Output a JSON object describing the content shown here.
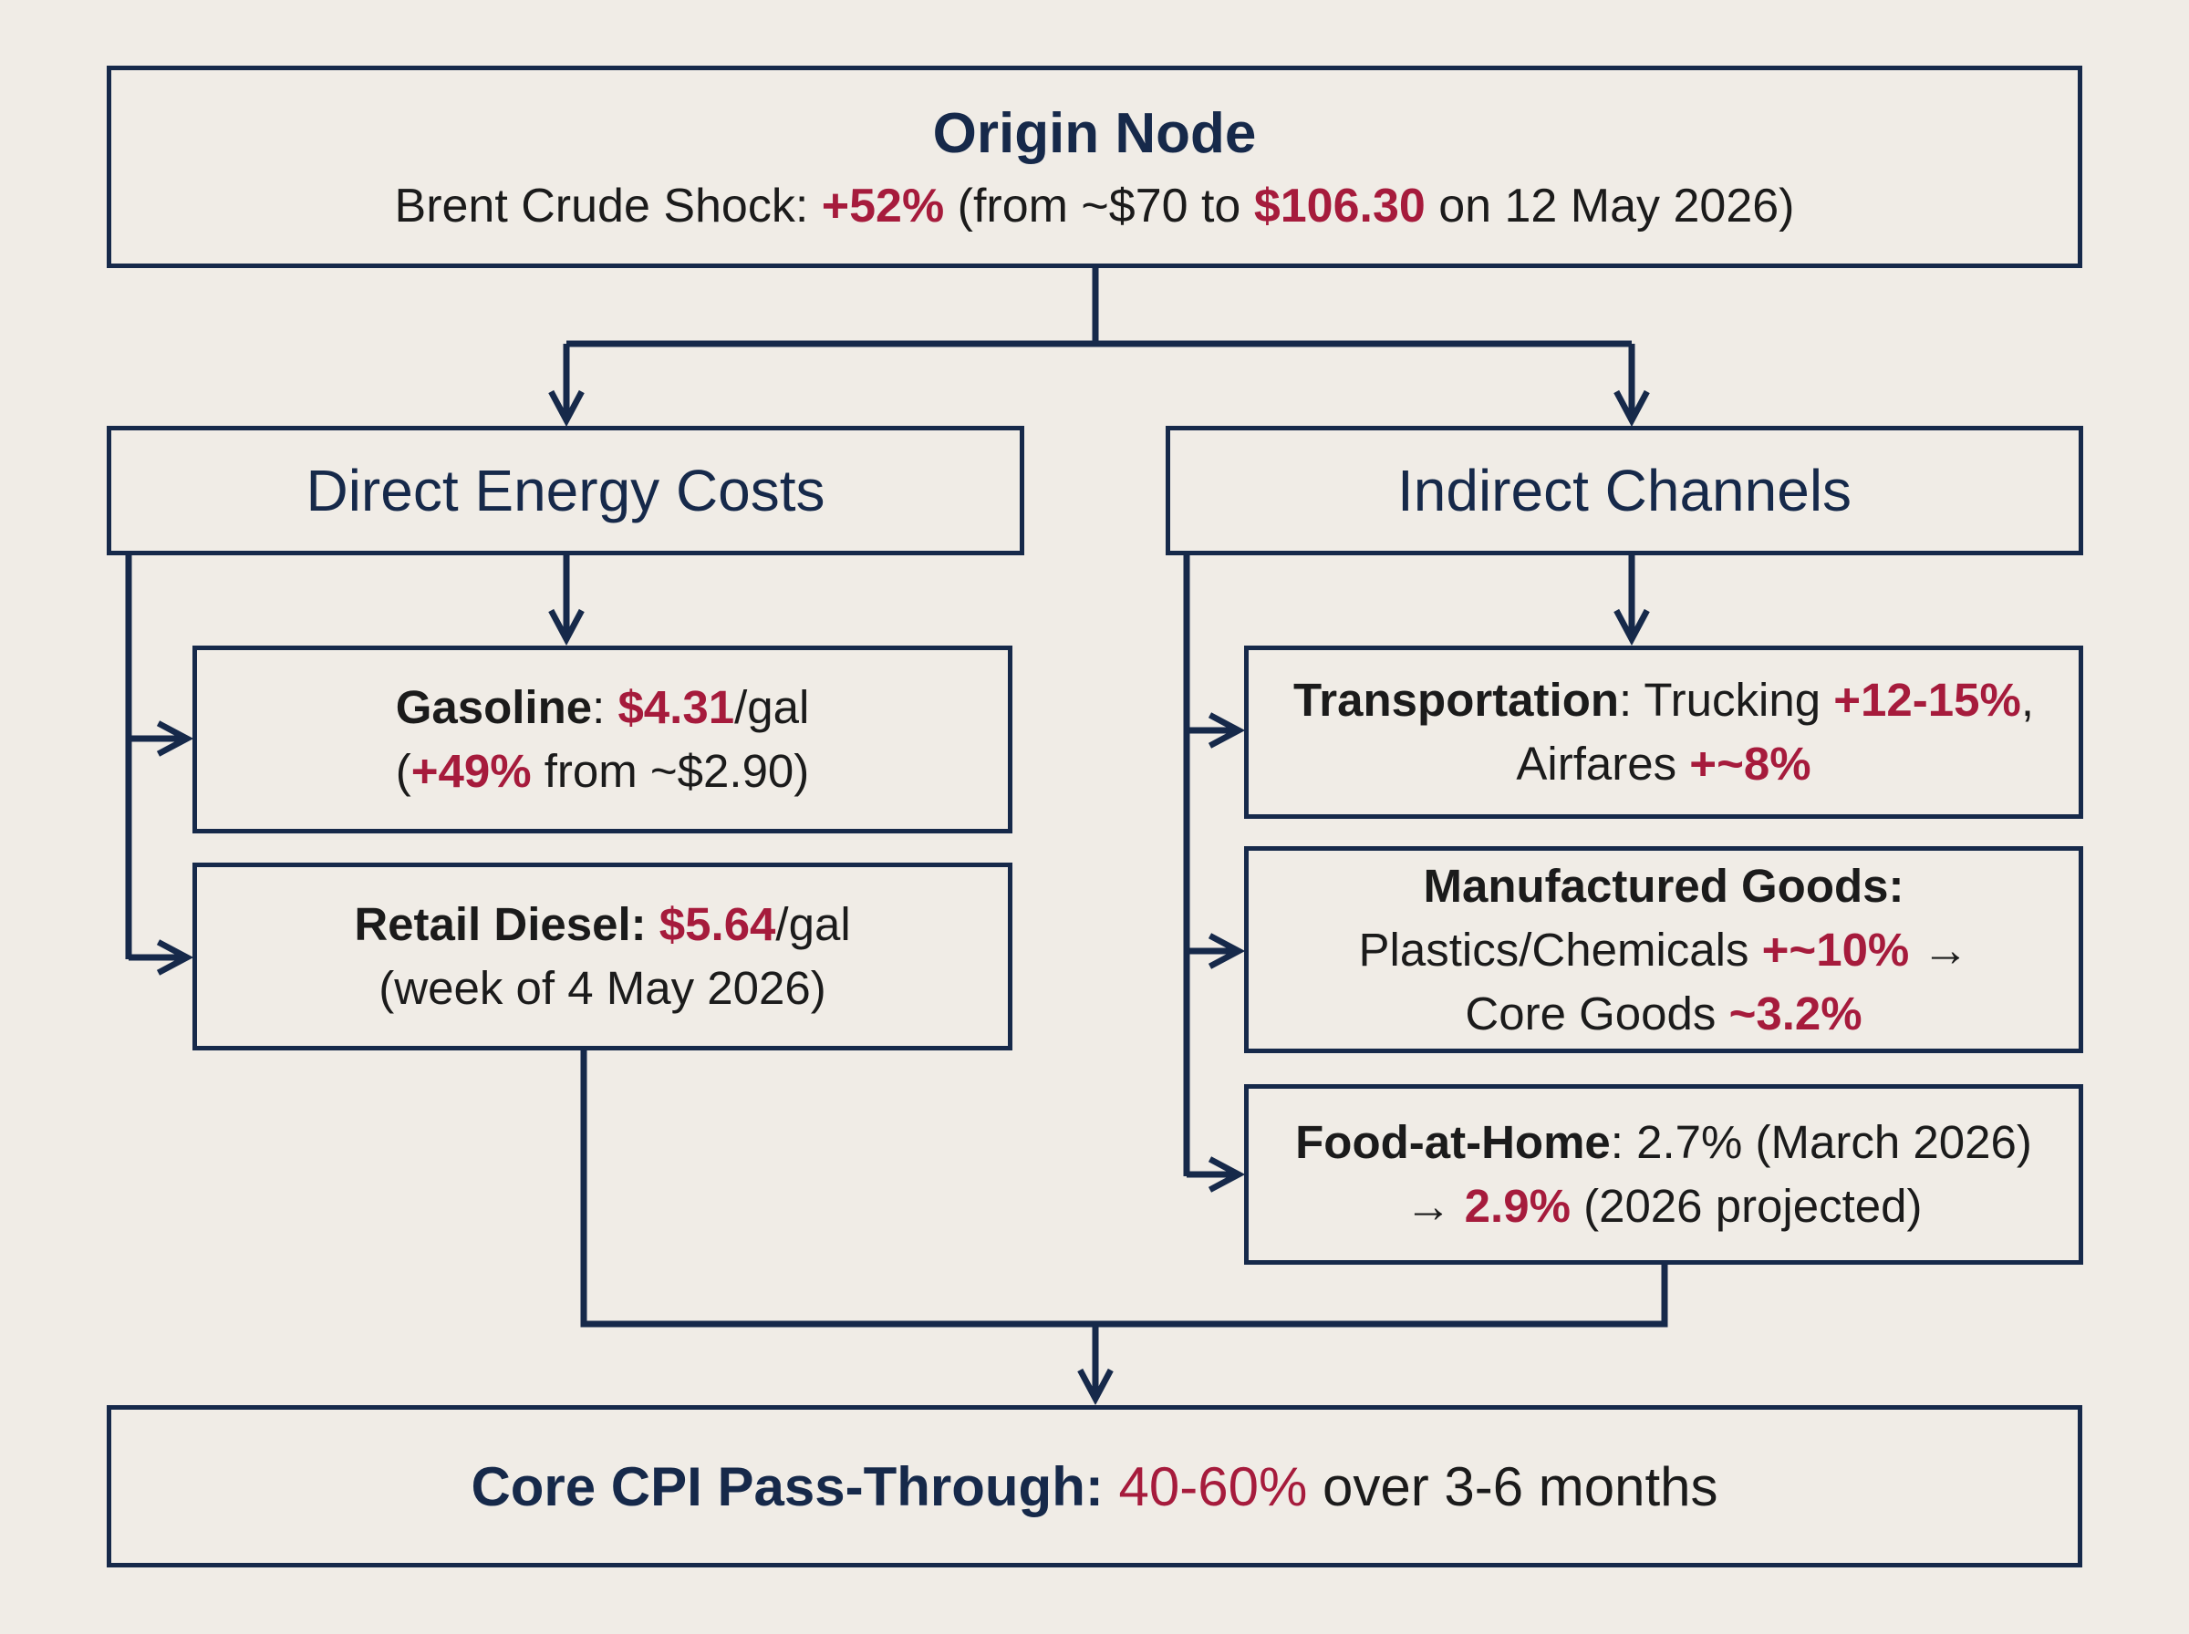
{
  "origin": {
    "title": "Origin Node",
    "lead": "Brent Crude Shock: ",
    "pct": "+52%",
    "mid": " (from ~$70 to ",
    "price": "$106.30",
    "tail": " on 12 May 2026)"
  },
  "direct": {
    "title": "Direct Energy Costs",
    "gasoline": {
      "label": "Gasoline",
      "colon": ": ",
      "price": "$4.31",
      "unit": "/gal",
      "open": "(",
      "pct": "+49%",
      "rest": " from ~$2.90)"
    },
    "diesel": {
      "label": "Retail Diesel:",
      "price": " $5.64",
      "unit": "/gal",
      "note": "(week of 4 May 2026)"
    }
  },
  "indirect": {
    "title": "Indirect Channels",
    "transport": {
      "label": "Transportation",
      "colon": ": Trucking ",
      "trucking": "+12-15%",
      "comma": ",",
      "airfares": "Airfares ",
      "airfares_pct": "+~8%"
    },
    "manufactured": {
      "label": "Manufactured Goods",
      "colon": ":",
      "plastics": "Plastics/Chemicals ",
      "plastics_pct": "+~10%",
      "arrow": " →",
      "core": "Core Goods ",
      "core_pct": "~3.2%"
    },
    "food": {
      "label": "Food-at-Home",
      "colon": ": 2.7% (March 2026)",
      "arrow": "→ ",
      "projected_pct": "2.9%",
      "projected_note": " (2026 projected)"
    }
  },
  "result": {
    "label": "Core CPI Pass-Through:",
    "range": " 40-60%",
    "rest": " over 3-6 months"
  },
  "colors": {
    "navy": "#16294a",
    "accent_red": "#a61b3c",
    "background": "#f0ece6"
  }
}
